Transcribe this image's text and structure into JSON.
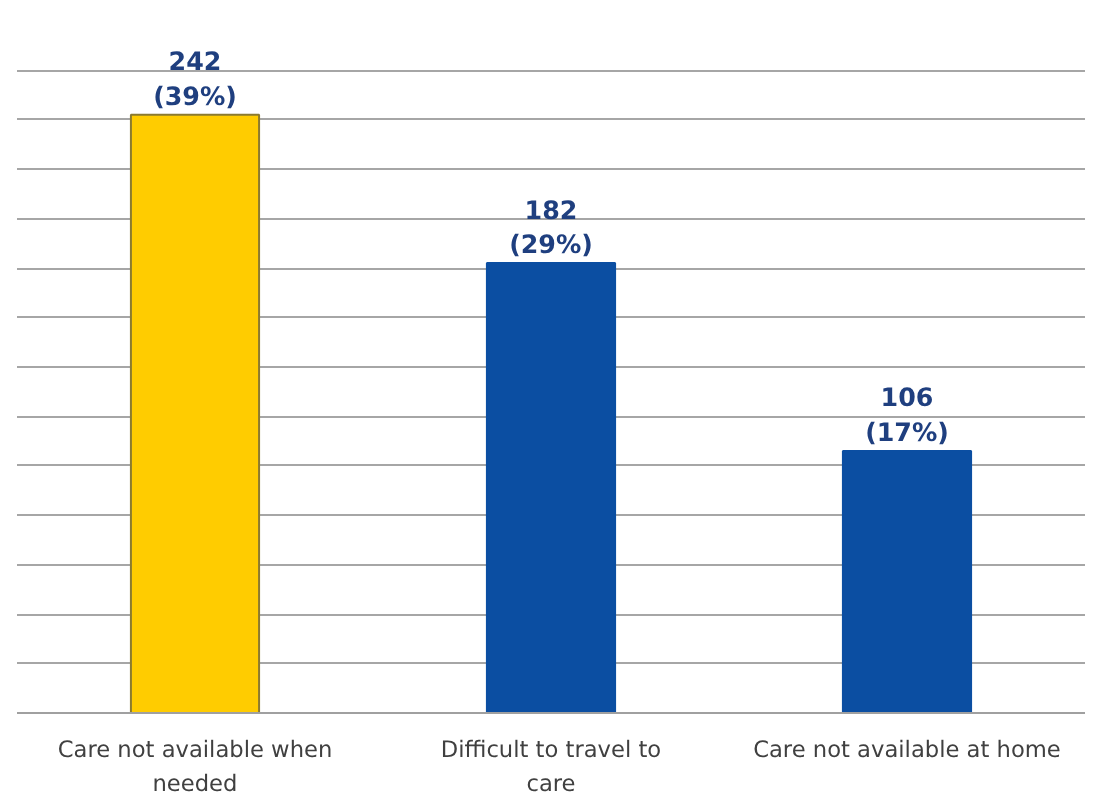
{
  "chart_data": {
    "type": "bar",
    "categories": [
      "Care not available when needed",
      "Difficult to travel to care",
      "Care not available at home"
    ],
    "values": [
      242,
      182,
      106
    ],
    "colors": [
      "#ffcc00",
      "#0b4ea2",
      "#0b4ea2"
    ],
    "value_labels": [
      "242\n(39%)",
      "182\n(29%)",
      "106\n(17%)"
    ],
    "grid": "y",
    "tick_labels": "x"
  }
}
